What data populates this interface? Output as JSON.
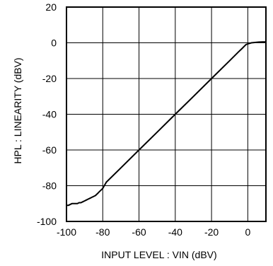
{
  "chart_data": {
    "type": "line",
    "title": "",
    "xlabel": "INPUT LEVEL : VIN (dBV)",
    "ylabel": "HPL : LINEARITY (dBV)",
    "xlim": [
      -100,
      10
    ],
    "ylim": [
      -100,
      20
    ],
    "x_ticks": [
      -100,
      -80,
      -60,
      -40,
      -20,
      0
    ],
    "y_ticks": [
      20,
      0,
      -20,
      -40,
      -60,
      -80,
      -100
    ],
    "grid": true,
    "colors": {
      "line": "#000000",
      "grid": "#000000",
      "frame": "#000000"
    },
    "series": [
      {
        "x": [
          -100,
          -99,
          -97,
          -95,
          -94,
          -93,
          -92,
          -91,
          -90,
          -89,
          -88,
          -87,
          -86,
          -85,
          -84,
          -83,
          -82,
          -81,
          -80,
          -78,
          -75,
          -70,
          -60,
          -50,
          -40,
          -30,
          -20,
          -10,
          -5,
          -3,
          -2,
          -1,
          0,
          1,
          2,
          4,
          6,
          8,
          10
        ],
        "y": [
          -91,
          -91,
          -90,
          -90,
          -90,
          -89.5,
          -89.5,
          -89,
          -88.5,
          -88,
          -87.5,
          -87,
          -86.5,
          -86,
          -85.5,
          -84.5,
          -83.5,
          -82.5,
          -81.5,
          -78,
          -75,
          -70,
          -60,
          -50,
          -40,
          -30,
          -20,
          -10,
          -5,
          -3,
          -2,
          -1,
          -0.6,
          -0.3,
          0,
          0.2,
          0.4,
          0.5,
          0.5
        ]
      }
    ]
  }
}
